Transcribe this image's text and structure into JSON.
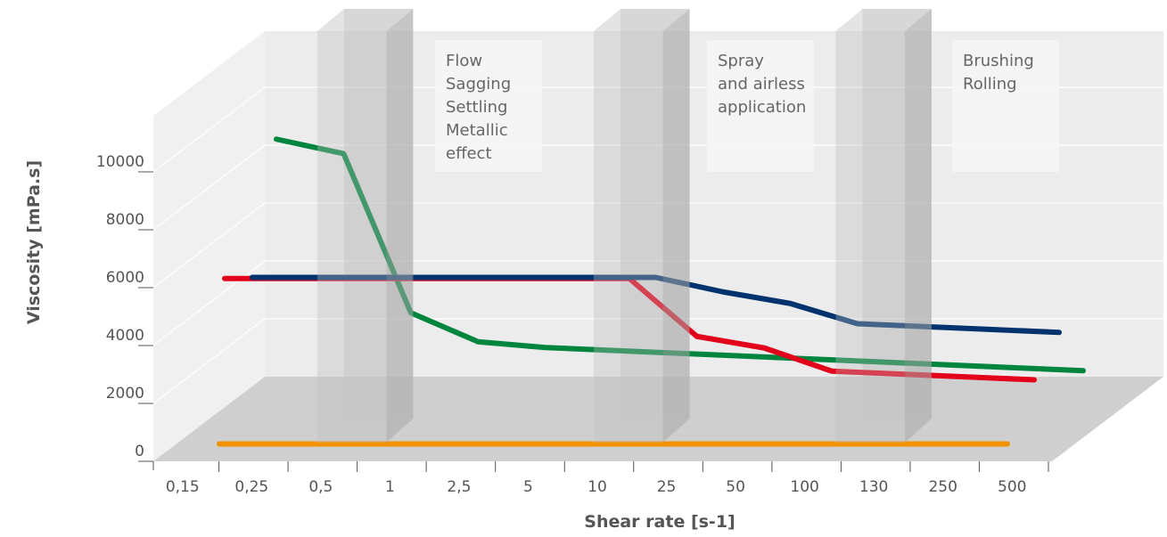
{
  "chart_data": {
    "type": "line",
    "xlabel": "Shear rate [s-1]",
    "ylabel": "Viscosity [mPa.s]",
    "categories": [
      "0,15",
      "0,25",
      "0,5",
      "1",
      "2,5",
      "5",
      "10",
      "25",
      "50",
      "100",
      "130",
      "250",
      "500"
    ],
    "y_ticks": [
      "0",
      "2000",
      "4000",
      "6000",
      "8000",
      "10000"
    ],
    "ylim": [
      0,
      12000
    ],
    "grid": true,
    "annotations": [
      {
        "lines": [
          "Flow",
          "Sagging",
          "Settling",
          "Metallic",
          "effect"
        ]
      },
      {
        "lines": [
          "Spray",
          "and airless",
          "application"
        ]
      },
      {
        "lines": [
          "Brushing",
          "Rolling"
        ]
      }
    ],
    "series": [
      {
        "color": "#00853f",
        "values": [
          10400,
          9900,
          4400,
          3400,
          3200,
          3100,
          3000,
          2900,
          2800,
          2700,
          2600,
          2500,
          2400
        ]
      },
      {
        "color": "#e2001a",
        "values": [
          5000,
          5000,
          5000,
          5000,
          5000,
          5000,
          5000,
          3000,
          2600,
          1800,
          1700,
          1600,
          1500
        ]
      },
      {
        "color": "#00336e",
        "values": [
          4600,
          4600,
          4600,
          4600,
          4600,
          4600,
          4600,
          4100,
          3700,
          3000,
          2900,
          2800,
          2700
        ]
      },
      {
        "color": "#f39200",
        "values": [
          600,
          600,
          600,
          600,
          600,
          600,
          600,
          600,
          600,
          600,
          600,
          600,
          600
        ]
      }
    ]
  }
}
